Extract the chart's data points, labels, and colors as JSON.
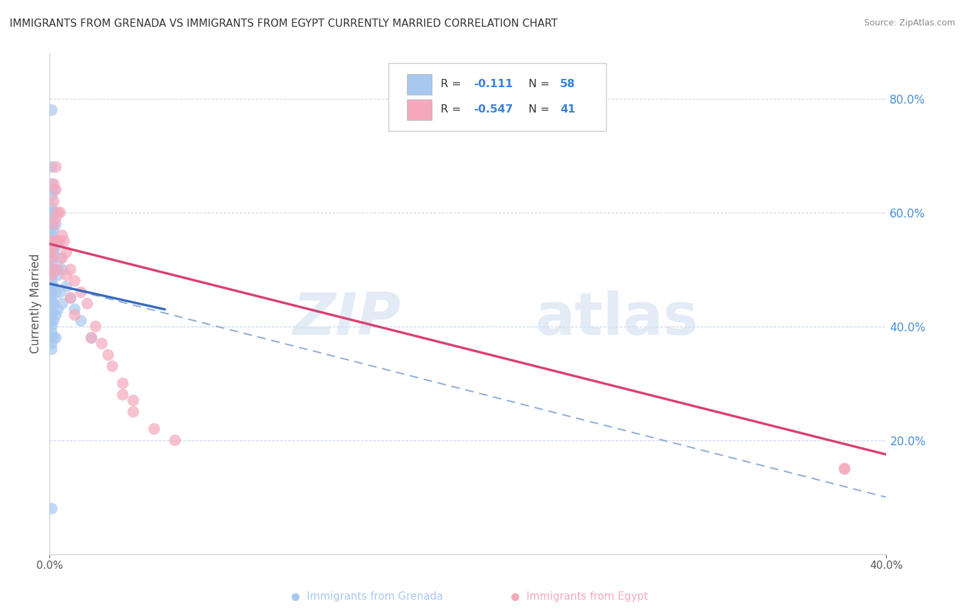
{
  "title": "IMMIGRANTS FROM GRENADA VS IMMIGRANTS FROM EGYPT CURRENTLY MARRIED CORRELATION CHART",
  "source": "Source: ZipAtlas.com",
  "ylabel": "Currently Married",
  "grenada_color": "#a8c8f0",
  "egypt_color": "#f5a8bc",
  "grenada_line_color": "#3a6abf",
  "egypt_line_color": "#d94070",
  "dashed_line_color": "#90aed4",
  "watermark_zip": "ZIP",
  "watermark_atlas": "atlas",
  "xlim": [
    0.0,
    0.4
  ],
  "ylim": [
    0.0,
    0.88
  ],
  "yticks": [
    0.0,
    0.2,
    0.4,
    0.6,
    0.8
  ],
  "xticks": [
    0.0,
    0.4
  ],
  "grenada_scatter_x": [
    0.001,
    0.001,
    0.001,
    0.001,
    0.001,
    0.001,
    0.001,
    0.001,
    0.001,
    0.001,
    0.001,
    0.001,
    0.001,
    0.001,
    0.001,
    0.001,
    0.001,
    0.001,
    0.001,
    0.001,
    0.001,
    0.001,
    0.001,
    0.001,
    0.001,
    0.001,
    0.001,
    0.001,
    0.001,
    0.001,
    0.002,
    0.002,
    0.002,
    0.002,
    0.002,
    0.002,
    0.002,
    0.002,
    0.002,
    0.003,
    0.003,
    0.003,
    0.003,
    0.003,
    0.003,
    0.004,
    0.004,
    0.004,
    0.005,
    0.005,
    0.006,
    0.006,
    0.008,
    0.01,
    0.012,
    0.015,
    0.02,
    0.001
  ],
  "grenada_scatter_y": [
    0.78,
    0.68,
    0.65,
    0.63,
    0.61,
    0.6,
    0.59,
    0.58,
    0.57,
    0.56,
    0.55,
    0.54,
    0.53,
    0.52,
    0.51,
    0.5,
    0.49,
    0.48,
    0.47,
    0.46,
    0.45,
    0.44,
    0.43,
    0.42,
    0.41,
    0.4,
    0.39,
    0.38,
    0.37,
    0.36,
    0.64,
    0.6,
    0.57,
    0.53,
    0.5,
    0.47,
    0.44,
    0.41,
    0.38,
    0.58,
    0.54,
    0.5,
    0.46,
    0.42,
    0.38,
    0.55,
    0.49,
    0.43,
    0.52,
    0.46,
    0.5,
    0.44,
    0.47,
    0.45,
    0.43,
    0.41,
    0.38,
    0.08
  ],
  "egypt_scatter_x": [
    0.001,
    0.001,
    0.001,
    0.001,
    0.001,
    0.002,
    0.002,
    0.002,
    0.002,
    0.003,
    0.003,
    0.003,
    0.003,
    0.004,
    0.004,
    0.004,
    0.005,
    0.005,
    0.006,
    0.006,
    0.007,
    0.008,
    0.01,
    0.012,
    0.015,
    0.018,
    0.022,
    0.025,
    0.03,
    0.035,
    0.04,
    0.38
  ],
  "egypt_scatter_y": [
    0.55,
    0.53,
    0.52,
    0.5,
    0.49,
    0.65,
    0.62,
    0.58,
    0.54,
    0.68,
    0.64,
    0.59,
    0.55,
    0.6,
    0.55,
    0.5,
    0.6,
    0.55,
    0.56,
    0.52,
    0.55,
    0.53,
    0.5,
    0.48,
    0.46,
    0.44,
    0.4,
    0.37,
    0.33,
    0.3,
    0.27,
    0.15
  ],
  "egypt_scatter_extra_x": [
    0.008,
    0.01,
    0.012,
    0.02,
    0.028,
    0.035,
    0.04,
    0.05,
    0.06,
    0.38
  ],
  "egypt_scatter_extra_y": [
    0.49,
    0.45,
    0.42,
    0.38,
    0.35,
    0.28,
    0.25,
    0.22,
    0.2,
    0.15
  ],
  "grenada_trendline_x": [
    0.0,
    0.055
  ],
  "grenada_trendline_y": [
    0.475,
    0.43
  ],
  "egypt_trendline_x": [
    0.0,
    0.4
  ],
  "egypt_trendline_y": [
    0.545,
    0.175
  ],
  "dashed_trendline_x": [
    0.0,
    0.4
  ],
  "dashed_trendline_y": [
    0.475,
    0.1
  ]
}
